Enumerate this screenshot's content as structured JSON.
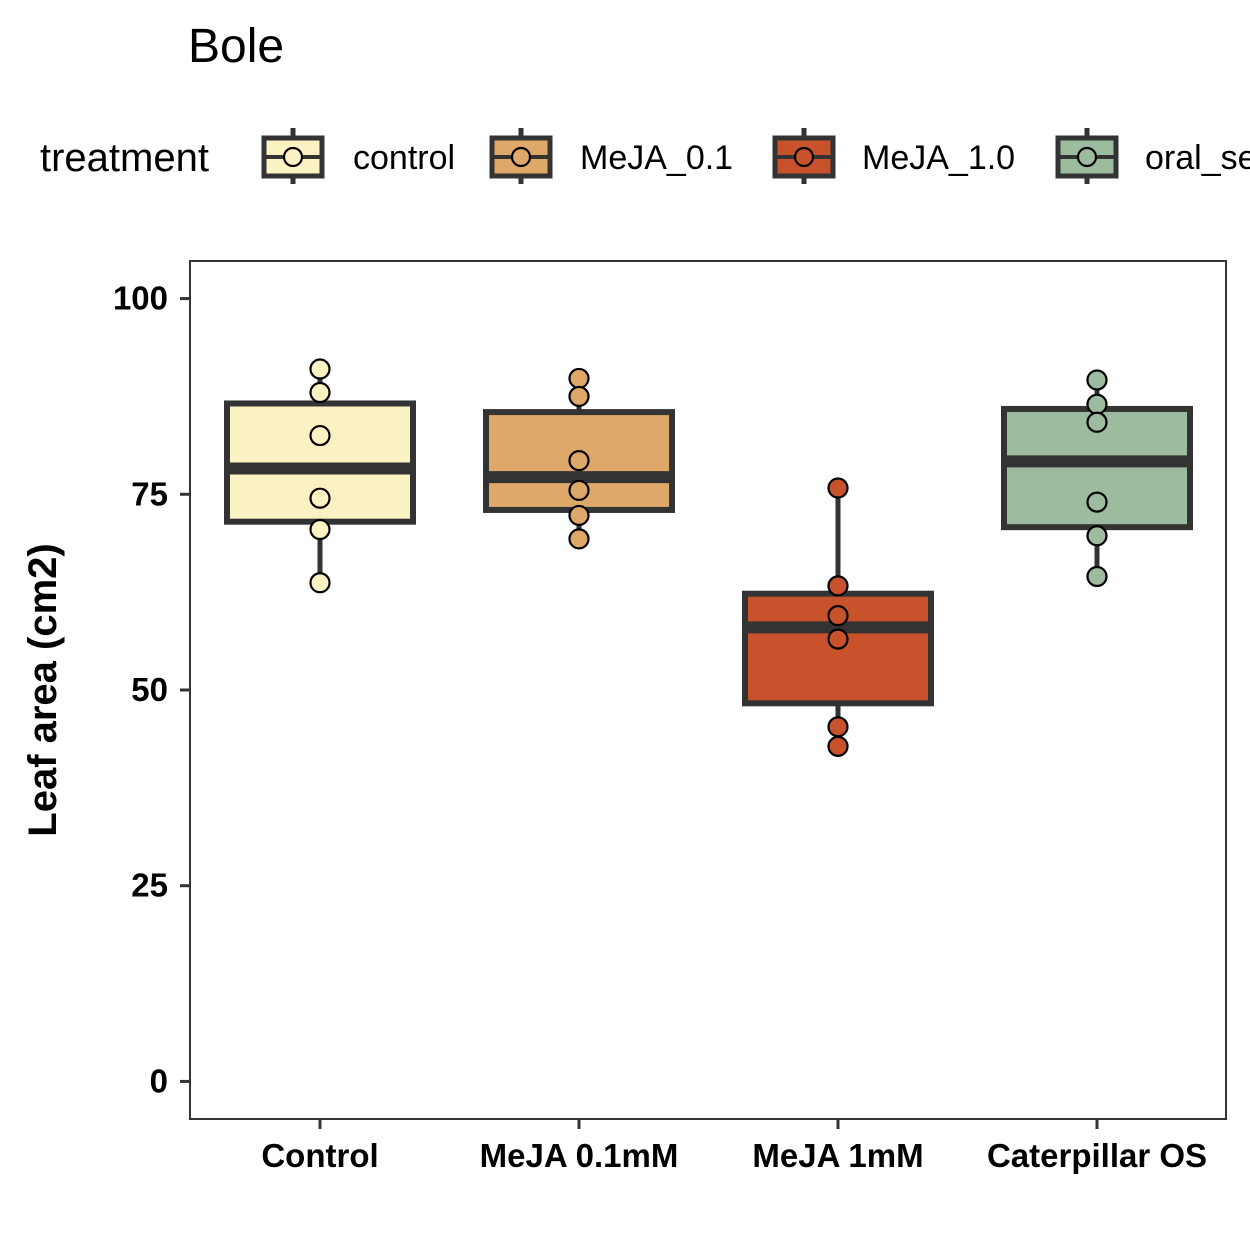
{
  "chart_data": {
    "type": "box",
    "title": "Bole",
    "xlabel": "",
    "ylabel": "Leaf area (cm2)",
    "ylim": [
      -4.8,
      104.8
    ],
    "yticks": [
      0,
      25,
      50,
      75,
      100
    ],
    "grid": false,
    "legend_position": "top",
    "legend": {
      "title": "treatment",
      "entries": [
        "control",
        "MeJA_0.1",
        "MeJA_1.0",
        "oral_se"
      ]
    },
    "categories": [
      "Control",
      "MeJA 0.1mM",
      "MeJA 1mM",
      "Caterpillar OS"
    ],
    "series": [
      {
        "name": "control",
        "category": "Control",
        "color": "#FBF2C4",
        "box": {
          "q1": 71.5,
          "median": 78.3,
          "q3": 86.6,
          "whisker_low": 63.7,
          "whisker_high": 91.0
        },
        "points": [
          91.0,
          88.0,
          82.5,
          74.5,
          70.5,
          63.7
        ]
      },
      {
        "name": "MeJA_0.1",
        "category": "MeJA 0.1mM",
        "color": "#DEA868",
        "box": {
          "q1": 73.0,
          "median": 77.2,
          "q3": 85.5,
          "whisker_low": 69.3,
          "whisker_high": 89.8
        },
        "points": [
          89.8,
          87.5,
          79.3,
          75.5,
          72.3,
          69.3
        ]
      },
      {
        "name": "MeJA_1.0",
        "category": "MeJA 1mM",
        "color": "#C7522B",
        "box": {
          "q1": 48.3,
          "median": 58.0,
          "q3": 62.3,
          "whisker_low": 42.8,
          "whisker_high": 75.8
        },
        "points": [
          75.8,
          63.3,
          59.5,
          56.5,
          45.3,
          42.8
        ]
      },
      {
        "name": "oral_se",
        "category": "Caterpillar OS",
        "color": "#9CBB9F",
        "box": {
          "q1": 70.8,
          "median": 79.2,
          "q3": 85.9,
          "whisker_low": 64.5,
          "whisker_high": 89.6
        },
        "points": [
          89.6,
          86.5,
          84.2,
          74.0,
          69.7,
          64.5
        ]
      }
    ]
  }
}
